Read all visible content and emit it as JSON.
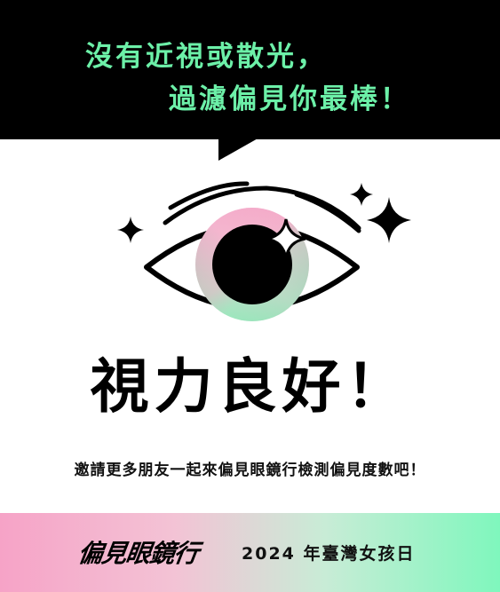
{
  "banner": {
    "line1": "沒有近視或散光，",
    "line2": "過濾偏見你最棒！"
  },
  "result": {
    "title": "視力良好！"
  },
  "invite": {
    "text": "邀請更多朋友一起來偏見眼鏡行檢測偏見度數吧！"
  },
  "footer": {
    "logo_text": "偏見眼鏡行",
    "event_text": "2024 年臺灣女孩日"
  },
  "colors": {
    "accent_green": "#6cf0a8",
    "iris_pink": "#f39ac3",
    "iris_green": "#63f0a8",
    "footer_left": "#f6a3c7",
    "footer_right": "#7ff7bd"
  },
  "icons": [
    "sparkle-icon",
    "eye-icon"
  ]
}
